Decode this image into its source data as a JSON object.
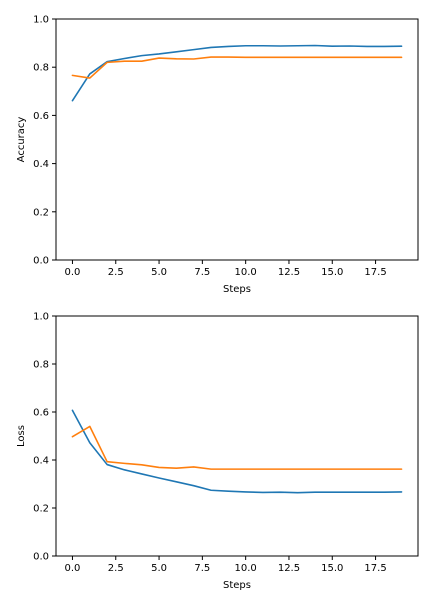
{
  "chart_data": [
    {
      "type": "line",
      "xlabel": "Steps",
      "ylabel": "Accuracy",
      "xlim": [
        -0.95,
        19.95
      ],
      "ylim": [
        0.0,
        1.0
      ],
      "xticks": [
        0.0,
        2.5,
        5.0,
        7.5,
        10.0,
        12.5,
        15.0,
        17.5
      ],
      "xtick_labels": [
        "0.0",
        "2.5",
        "5.0",
        "7.5",
        "10.0",
        "12.5",
        "15.0",
        "17.5"
      ],
      "yticks": [
        0.0,
        0.2,
        0.4,
        0.6,
        0.8,
        1.0
      ],
      "ytick_labels": [
        "0.0",
        "0.2",
        "0.4",
        "0.6",
        "0.8",
        "1.0"
      ],
      "grid": false,
      "x": [
        0,
        1,
        2,
        3,
        4,
        5,
        6,
        7,
        8,
        9,
        10,
        11,
        12,
        13,
        14,
        15,
        16,
        17,
        18,
        19
      ],
      "series": [
        {
          "color": "#1f77b4",
          "values": [
            0.661,
            0.772,
            0.823,
            0.836,
            0.848,
            0.855,
            0.864,
            0.873,
            0.882,
            0.886,
            0.889,
            0.889,
            0.888,
            0.889,
            0.89,
            0.887,
            0.888,
            0.886,
            0.886,
            0.887
          ]
        },
        {
          "color": "#ff7f0e",
          "values": [
            0.766,
            0.755,
            0.82,
            0.825,
            0.825,
            0.838,
            0.835,
            0.834,
            0.842,
            0.842,
            0.841,
            0.841,
            0.841,
            0.841,
            0.841,
            0.841,
            0.841,
            0.841,
            0.841,
            0.841
          ]
        }
      ]
    },
    {
      "type": "line",
      "xlabel": "Steps",
      "ylabel": "Loss",
      "xlim": [
        -0.95,
        19.95
      ],
      "ylim": [
        0.0,
        1.0
      ],
      "xticks": [
        0.0,
        2.5,
        5.0,
        7.5,
        10.0,
        12.5,
        15.0,
        17.5
      ],
      "xtick_labels": [
        "0.0",
        "2.5",
        "5.0",
        "7.5",
        "10.0",
        "12.5",
        "15.0",
        "17.5"
      ],
      "yticks": [
        0.0,
        0.2,
        0.4,
        0.6,
        0.8,
        1.0
      ],
      "ytick_labels": [
        "0.0",
        "0.2",
        "0.4",
        "0.6",
        "0.8",
        "1.0"
      ],
      "grid": false,
      "x": [
        0,
        1,
        2,
        3,
        4,
        5,
        6,
        7,
        8,
        9,
        10,
        11,
        12,
        13,
        14,
        15,
        16,
        17,
        18,
        19
      ],
      "series": [
        {
          "color": "#1f77b4",
          "values": [
            0.607,
            0.472,
            0.381,
            0.359,
            0.342,
            0.325,
            0.309,
            0.293,
            0.274,
            0.27,
            0.267,
            0.265,
            0.266,
            0.264,
            0.266,
            0.266,
            0.266,
            0.266,
            0.266,
            0.267
          ]
        },
        {
          "color": "#ff7f0e",
          "values": [
            0.497,
            0.54,
            0.393,
            0.386,
            0.38,
            0.369,
            0.366,
            0.371,
            0.362,
            0.362,
            0.362,
            0.362,
            0.362,
            0.362,
            0.362,
            0.362,
            0.362,
            0.362,
            0.362,
            0.362
          ]
        }
      ]
    }
  ]
}
